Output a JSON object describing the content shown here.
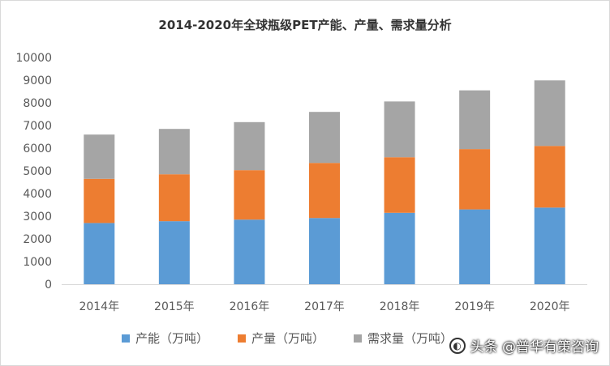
{
  "chart_data": {
    "type": "bar",
    "stacked": true,
    "title": "2014-2020年全球瓶级PET产能、产量、需求量分析",
    "categories": [
      "2014年",
      "2015年",
      "2016年",
      "2017年",
      "2018年",
      "2019年",
      "2020年"
    ],
    "series": [
      {
        "name": "产能（万吨）",
        "color": "#5b9bd5",
        "values": [
          2700,
          2780,
          2850,
          2920,
          3150,
          3300,
          3380
        ]
      },
      {
        "name": "产量（万吨）",
        "color": "#ed7d31",
        "values": [
          1950,
          2070,
          2180,
          2430,
          2450,
          2660,
          2720
        ]
      },
      {
        "name": "需求量（万吨）",
        "color": "#a5a5a5",
        "values": [
          1950,
          2000,
          2120,
          2250,
          2460,
          2590,
          2890
        ]
      }
    ],
    "ylim": [
      0,
      10000
    ],
    "yticks": [
      0,
      1000,
      2000,
      3000,
      4000,
      5000,
      6000,
      7000,
      8000,
      9000,
      10000
    ],
    "grid": false,
    "legend_position": "bottom"
  },
  "watermark": {
    "text": "头条 @普华有策咨询"
  }
}
